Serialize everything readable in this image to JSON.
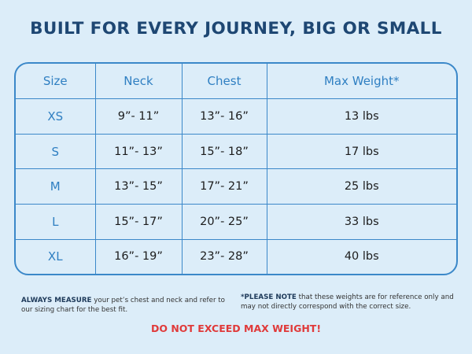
{
  "title": "BUILT FOR EVERY JOURNEY, BIG OR SMALL",
  "table": {
    "headers": [
      "Size",
      "Neck",
      "Chest",
      "Max Weight*"
    ],
    "rows": [
      [
        "XS",
        "9”- 11”",
        "13”- 16”",
        "13 lbs"
      ],
      [
        "S",
        "11”- 13”",
        "15”- 18”",
        "17 lbs"
      ],
      [
        "M",
        "13”- 15”",
        "17”- 21”",
        "25 lbs"
      ],
      [
        "L",
        "15”- 17”",
        "20”- 25”",
        "33 lbs"
      ],
      [
        "XL",
        "16”- 19”",
        "23”- 28”",
        "40 lbs"
      ]
    ]
  },
  "notes": {
    "left_bold": "ALWAYS MEASURE",
    "left_text": " your pet’s chest and neck and refer to our sizing chart for the best fit.",
    "right_bold": "*PLEASE NOTE",
    "right_text": " that these weights are for reference only and may not directly correspond with the correct size."
  },
  "warning": "DO NOT EXCEED MAX WEIGHT!",
  "colors": {
    "background": "#dcedf9",
    "title": "#1e4773",
    "accent": "#3b88c9",
    "warning": "#e03a3a"
  }
}
